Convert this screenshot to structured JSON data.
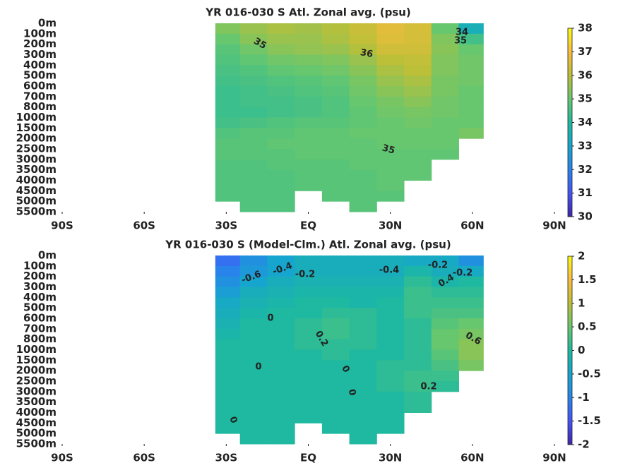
{
  "chart_data": [
    {
      "type": "heatmap",
      "title": "YR 016-030 S Atl. Zonal avg. (psu)",
      "x_edges": [
        -34,
        -25,
        -15,
        -5,
        5,
        15,
        25,
        35,
        45,
        55,
        64
      ],
      "xlim": [
        -90,
        90
      ],
      "xticks": [
        {
          "value": -90,
          "label": "90S"
        },
        {
          "value": -60,
          "label": "60S"
        },
        {
          "value": -30,
          "label": "30S"
        },
        {
          "value": 0,
          "label": "EQ"
        },
        {
          "value": 30,
          "label": "30N"
        },
        {
          "value": 60,
          "label": "60N"
        },
        {
          "value": 90,
          "label": "90N"
        }
      ],
      "y_levels": [
        "0m",
        "100m",
        "200m",
        "300m",
        "400m",
        "500m",
        "600m",
        "700m",
        "800m",
        "1000m",
        "1500m",
        "2000m",
        "2500m",
        "3000m",
        "3500m",
        "4000m",
        "4500m",
        "5000m",
        "5500m"
      ],
      "z": [
        [
          35.3,
          35.6,
          35.8,
          35.7,
          35.9,
          36.2,
          36.6,
          36.4,
          35.0,
          33.5
        ],
        [
          35.0,
          35.4,
          35.6,
          35.6,
          35.8,
          36.1,
          36.5,
          36.4,
          35.3,
          34.5
        ],
        [
          34.8,
          35.1,
          35.4,
          35.5,
          35.6,
          35.9,
          36.3,
          36.3,
          35.4,
          35.0
        ],
        [
          34.7,
          34.9,
          35.1,
          35.2,
          35.3,
          35.6,
          36.0,
          36.1,
          35.3,
          35.1
        ],
        [
          34.6,
          34.7,
          34.9,
          35.0,
          35.1,
          35.4,
          35.8,
          36.0,
          35.3,
          35.1
        ],
        [
          34.5,
          34.6,
          34.7,
          34.8,
          34.9,
          35.2,
          35.6,
          35.8,
          35.2,
          35.1
        ],
        [
          34.4,
          34.5,
          34.6,
          34.7,
          34.8,
          35.1,
          35.4,
          35.6,
          35.2,
          35.0
        ],
        [
          34.4,
          34.5,
          34.5,
          34.6,
          34.7,
          35.0,
          35.2,
          35.4,
          35.1,
          35.0
        ],
        [
          34.4,
          34.4,
          34.5,
          34.6,
          34.7,
          34.9,
          35.1,
          35.2,
          35.1,
          35.0
        ],
        [
          34.5,
          34.6,
          34.7,
          34.8,
          34.8,
          34.9,
          35.0,
          35.1,
          35.0,
          35.0
        ],
        [
          34.7,
          34.8,
          34.8,
          34.9,
          34.9,
          35.0,
          35.0,
          35.0,
          35.0,
          35.2
        ],
        [
          34.8,
          34.8,
          34.9,
          34.9,
          34.9,
          34.9,
          35.0,
          35.0,
          35.0,
          null
        ],
        [
          34.8,
          34.8,
          34.8,
          34.9,
          34.9,
          34.9,
          34.9,
          34.9,
          34.9,
          null
        ],
        [
          34.7,
          34.7,
          34.8,
          34.8,
          34.8,
          34.9,
          34.9,
          34.9,
          null,
          null
        ],
        [
          34.7,
          34.7,
          34.7,
          34.8,
          34.8,
          34.8,
          34.9,
          34.9,
          null,
          null
        ],
        [
          34.7,
          34.7,
          34.7,
          34.8,
          34.8,
          34.8,
          34.9,
          null,
          null,
          null
        ],
        [
          34.7,
          34.7,
          34.7,
          null,
          34.8,
          34.8,
          34.8,
          null,
          null,
          null
        ],
        [
          null,
          34.7,
          34.7,
          null,
          null,
          34.8,
          null,
          null,
          null,
          null
        ]
      ],
      "clim": [
        30,
        38
      ],
      "cticks": [
        30,
        31,
        32,
        33,
        34,
        35,
        36,
        37,
        38
      ],
      "annotations": [
        "35",
        "36",
        "34",
        "35",
        "35"
      ]
    },
    {
      "type": "heatmap",
      "title": "YR 016-030 S (Model-Clm.) Atl. Zonal avg. (psu)",
      "x_edges": [
        -34,
        -25,
        -15,
        -5,
        5,
        15,
        25,
        35,
        45,
        55,
        64
      ],
      "xlim": [
        -90,
        90
      ],
      "xticks": [
        {
          "value": -90,
          "label": "90S"
        },
        {
          "value": -60,
          "label": "60S"
        },
        {
          "value": -30,
          "label": "30S"
        },
        {
          "value": 0,
          "label": "EQ"
        },
        {
          "value": 30,
          "label": "30N"
        },
        {
          "value": 60,
          "label": "60N"
        },
        {
          "value": 90,
          "label": "90N"
        }
      ],
      "y_levels": [
        "0m",
        "100m",
        "200m",
        "300m",
        "400m",
        "500m",
        "600m",
        "700m",
        "800m",
        "1000m",
        "1500m",
        "2000m",
        "2500m",
        "3000m",
        "3500m",
        "4000m",
        "4500m",
        "5000m",
        "5500m"
      ],
      "z": [
        [
          -1.2,
          -0.8,
          -0.5,
          -0.3,
          -0.3,
          -0.3,
          -0.3,
          -0.4,
          -0.4,
          -0.8
        ],
        [
          -1.0,
          -0.7,
          -0.5,
          -0.3,
          -0.3,
          -0.3,
          -0.3,
          -0.1,
          -0.3,
          -0.4
        ],
        [
          -0.8,
          -0.5,
          -0.3,
          -0.2,
          -0.2,
          -0.2,
          -0.2,
          0.1,
          -0.1,
          0.0
        ],
        [
          -0.6,
          -0.3,
          -0.2,
          -0.1,
          -0.1,
          -0.1,
          -0.1,
          0.2,
          0.1,
          0.1
        ],
        [
          -0.4,
          -0.2,
          -0.1,
          0.0,
          0.0,
          -0.1,
          0.0,
          0.2,
          0.2,
          0.2
        ],
        [
          -0.3,
          -0.1,
          0.0,
          0.0,
          0.1,
          0.1,
          0.0,
          0.2,
          0.3,
          0.3
        ],
        [
          -0.2,
          0.0,
          0.0,
          0.1,
          0.2,
          0.1,
          0.0,
          0.1,
          0.4,
          0.5
        ],
        [
          -0.1,
          0.0,
          0.0,
          0.1,
          0.2,
          0.1,
          0.0,
          0.1,
          0.5,
          0.6
        ],
        [
          0.0,
          0.0,
          0.0,
          0.1,
          0.1,
          0.1,
          0.0,
          0.1,
          0.5,
          0.7
        ],
        [
          0.0,
          0.0,
          0.0,
          0.0,
          0.1,
          0.0,
          0.0,
          0.1,
          0.4,
          0.7
        ],
        [
          0.0,
          0.0,
          0.0,
          0.0,
          0.0,
          0.0,
          0.1,
          0.1,
          0.3,
          0.6
        ],
        [
          0.0,
          0.0,
          0.0,
          0.0,
          0.0,
          0.0,
          0.1,
          0.2,
          0.2,
          null
        ],
        [
          0.0,
          0.0,
          0.0,
          0.0,
          0.0,
          0.0,
          0.1,
          0.2,
          0.1,
          null
        ],
        [
          0.0,
          0.0,
          0.0,
          0.0,
          0.0,
          0.0,
          0.0,
          0.1,
          null,
          null
        ],
        [
          0.0,
          0.0,
          0.0,
          0.0,
          0.0,
          0.0,
          0.0,
          0.1,
          null,
          null
        ],
        [
          0.0,
          0.0,
          0.0,
          0.0,
          0.0,
          0.0,
          0.0,
          null,
          null,
          null
        ],
        [
          0.0,
          0.0,
          0.0,
          null,
          0.0,
          0.0,
          0.0,
          null,
          null,
          null
        ],
        [
          null,
          0.0,
          0.0,
          null,
          null,
          0.0,
          null,
          null,
          null,
          null
        ]
      ],
      "clim": [
        -2,
        2
      ],
      "cticks": [
        -2,
        -1.5,
        -1,
        -0.5,
        0,
        0.5,
        1,
        1.5,
        2
      ],
      "annotations": [
        "-0.6",
        "-0.4",
        "-0.2",
        "-0.4",
        "-0.2",
        "-0.2",
        "0.4",
        "0",
        "0.2",
        "0.6",
        "0",
        "0",
        "0",
        "0.2",
        "0"
      ]
    }
  ]
}
